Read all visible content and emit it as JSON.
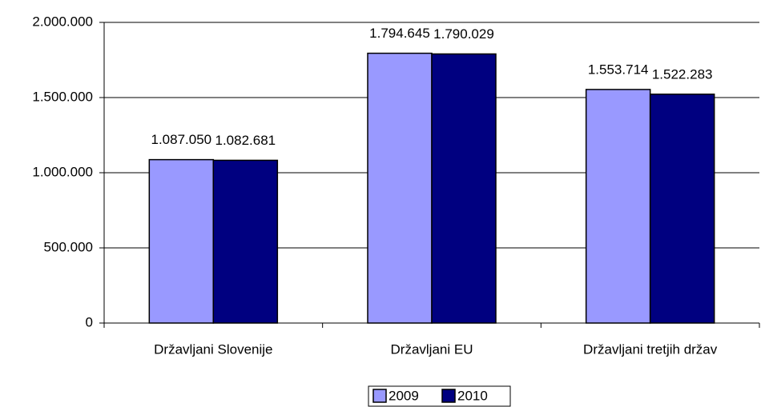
{
  "chart_data": {
    "type": "bar",
    "categories": [
      "Državljani Slovenije",
      "Državljani EU",
      "Državljani tretjih držav"
    ],
    "series": [
      {
        "name": "2009",
        "color": "#9999ff",
        "values": [
          1087050,
          1794645,
          1553714
        ],
        "value_labels": [
          "1.087.050",
          "1.794.645",
          "1.553.714"
        ]
      },
      {
        "name": "2010",
        "color": "#000080",
        "values": [
          1082681,
          1790029,
          1522283
        ],
        "value_labels": [
          "1.082.681",
          "1.790.029",
          "1.522.283"
        ]
      }
    ],
    "ylim": [
      0,
      2000000
    ],
    "yticks": [
      0,
      {
        "value": 500000,
        "label": "500.000"
      },
      {
        "value": 1000000,
        "label": "1.000.000"
      },
      {
        "value": 1500000,
        "label": "1.500.000"
      },
      {
        "value": 2000000,
        "label": "2.000.000"
      }
    ],
    "grid": true,
    "legend": "bottom"
  }
}
